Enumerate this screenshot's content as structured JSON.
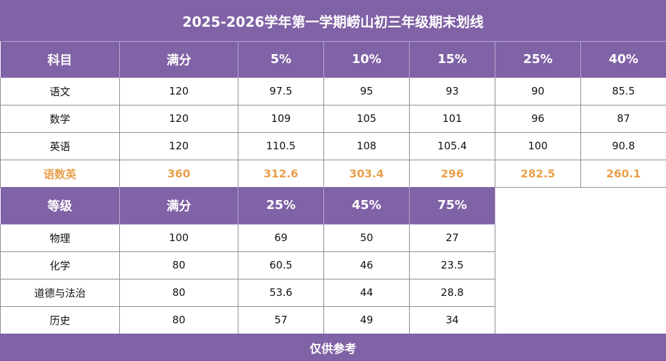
{
  "title": "2025-2026学年第一学期崂山初三年级期末划线",
  "table1": {
    "headers": [
      "科目",
      "满分",
      "5%",
      "10%",
      "15%",
      "25%",
      "40%"
    ],
    "rows": [
      [
        "语文",
        "120",
        "97.5",
        "95",
        "93",
        "90",
        "85.5"
      ],
      [
        "数学",
        "120",
        "109",
        "105",
        "101",
        "96",
        "87"
      ],
      [
        "英语",
        "120",
        "110.5",
        "108",
        "105.4",
        "100",
        "90.8"
      ]
    ],
    "total": [
      "语数英",
      "360",
      "312.6",
      "303.4",
      "296",
      "282.5",
      "260.1"
    ]
  },
  "table2": {
    "headers": [
      "等级",
      "满分",
      "25%",
      "45%",
      "75%"
    ],
    "rows": [
      [
        "物理",
        "100",
        "69",
        "50",
        "27"
      ],
      [
        "化学",
        "80",
        "60.5",
        "46",
        "23.5"
      ],
      [
        "道德与法治",
        "80",
        "53.6",
        "44",
        "28.8"
      ],
      [
        "历史",
        "80",
        "57",
        "49",
        "34"
      ]
    ]
  },
  "footer": "仅供参考",
  "colors": {
    "header_bg": "#8062a6",
    "header_text": "#ffffff",
    "total_text": "#e8a04c",
    "grid": "#8c8c8c"
  }
}
